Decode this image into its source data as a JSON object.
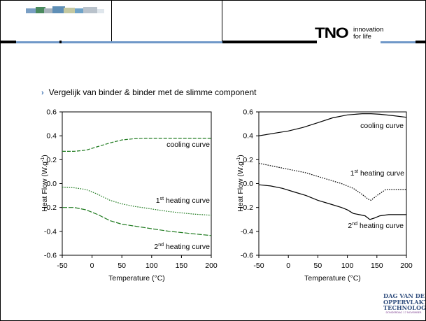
{
  "header": {
    "brand": "TNO",
    "tagline_line1": "innovation",
    "tagline_line2": "for life"
  },
  "bullet": {
    "text": "Vergelijk van binder & binder met de slimme component"
  },
  "footer_logo": {
    "line1": "DAG VAN DE",
    "line2": "OPPERVLAKTE",
    "line3": "TECHNOLOGIE",
    "line4": "DONDERDAG 17 NOVEMBER"
  },
  "colors": {
    "accent_blue": "#6f98c8",
    "left_chart_series": "#1e7a1e",
    "right_chart_series": "#000000"
  },
  "chart_data": [
    {
      "type": "line",
      "xlabel": "Temperature  (°C)",
      "ylabel_main": "Heat Flow",
      "ylabel_unit": "(W.g",
      "ylabel_sup": "-1",
      "ylabel_close": ")",
      "xlim": [
        -50,
        200
      ],
      "ylim": [
        -0.6,
        0.6
      ],
      "xticks": [
        "-50",
        "0",
        "50",
        "100",
        "150",
        "200"
      ],
      "yticks": [
        "-0.6",
        "-0.4",
        "-0.2",
        "0.0",
        "0.2",
        "0.4",
        "0.6"
      ],
      "series": [
        {
          "name": "cooling curve",
          "style": "dashed",
          "x": [
            -50,
            -30,
            -10,
            10,
            30,
            50,
            70,
            90,
            110,
            130,
            150,
            170,
            200
          ],
          "y": [
            0.27,
            0.27,
            0.28,
            0.31,
            0.34,
            0.365,
            0.375,
            0.38,
            0.38,
            0.38,
            0.38,
            0.38,
            0.38
          ]
        },
        {
          "name": "1st heating curve",
          "style": "dotted",
          "x": [
            -50,
            -30,
            -10,
            10,
            30,
            50,
            70,
            90,
            110,
            130,
            150,
            170,
            200
          ],
          "y": [
            -0.03,
            -0.035,
            -0.05,
            -0.09,
            -0.14,
            -0.17,
            -0.19,
            -0.205,
            -0.22,
            -0.235,
            -0.245,
            -0.255,
            -0.265
          ]
        },
        {
          "name": "2nd heating curve",
          "style": "dash-dot",
          "x": [
            -50,
            -30,
            -10,
            10,
            30,
            50,
            70,
            90,
            110,
            130,
            150,
            170,
            200
          ],
          "y": [
            -0.2,
            -0.2,
            -0.22,
            -0.26,
            -0.31,
            -0.34,
            -0.355,
            -0.37,
            -0.385,
            -0.4,
            -0.41,
            -0.42,
            -0.435
          ]
        }
      ],
      "annotations": [
        {
          "text": "cooling curve",
          "sup": "",
          "suffix": ""
        },
        {
          "text": "1",
          "sup": "st",
          "suffix": " heating curve"
        },
        {
          "text": "2",
          "sup": "nd",
          "suffix": " heating curve"
        }
      ]
    },
    {
      "type": "line",
      "xlabel": "Temperature  (°C)",
      "ylabel_main": "Heat Flow",
      "ylabel_unit": "(W.g",
      "ylabel_sup": "-1",
      "ylabel_close": ")",
      "xlim": [
        -50,
        200
      ],
      "ylim": [
        -0.6,
        0.6
      ],
      "xticks": [
        "-50",
        "0",
        "50",
        "100",
        "150",
        "200"
      ],
      "yticks": [
        "-0.6",
        "-0.4",
        "-0.2",
        "0.0",
        "0.2",
        "0.4",
        "0.6"
      ],
      "series": [
        {
          "name": "cooling curve",
          "style": "solid",
          "x": [
            -50,
            -25,
            0,
            25,
            50,
            75,
            100,
            125,
            140,
            155,
            175,
            200
          ],
          "y": [
            0.4,
            0.42,
            0.44,
            0.47,
            0.51,
            0.55,
            0.575,
            0.585,
            0.585,
            0.58,
            0.57,
            0.555
          ]
        },
        {
          "name": "1st heating curve",
          "style": "dotted",
          "x": [
            -50,
            -30,
            -10,
            10,
            30,
            50,
            70,
            90,
            110,
            125,
            135,
            140,
            150,
            165,
            180,
            200
          ],
          "y": [
            0.17,
            0.15,
            0.13,
            0.11,
            0.09,
            0.06,
            0.03,
            0.0,
            -0.04,
            -0.09,
            -0.13,
            -0.14,
            -0.1,
            -0.05,
            -0.05,
            -0.05
          ]
        },
        {
          "name": "2nd heating curve",
          "style": "solid",
          "x": [
            -50,
            -30,
            -10,
            10,
            30,
            50,
            70,
            90,
            100,
            110,
            120,
            130,
            138,
            145,
            155,
            170,
            185,
            200
          ],
          "y": [
            -0.01,
            -0.02,
            -0.04,
            -0.07,
            -0.1,
            -0.14,
            -0.17,
            -0.2,
            -0.22,
            -0.25,
            -0.26,
            -0.27,
            -0.3,
            -0.29,
            -0.27,
            -0.26,
            -0.26,
            -0.26
          ]
        }
      ],
      "annotations": [
        {
          "text": "cooling curve",
          "sup": "",
          "suffix": ""
        },
        {
          "text": "1",
          "sup": "st",
          "suffix": " heating curve"
        },
        {
          "text": "2",
          "sup": "nd",
          "suffix": " heating curve"
        }
      ]
    }
  ]
}
